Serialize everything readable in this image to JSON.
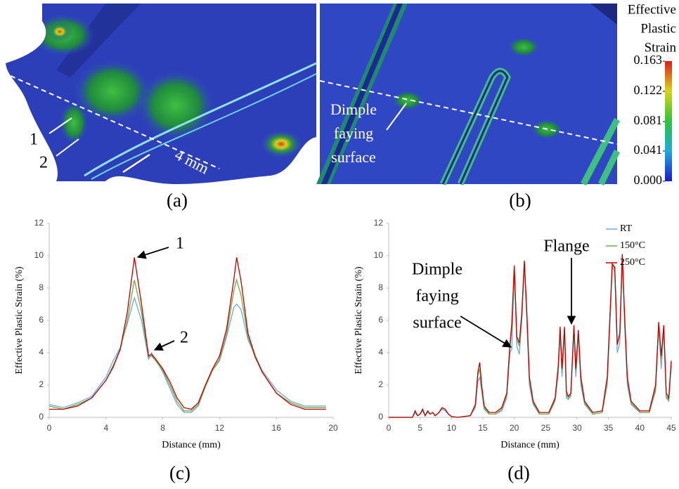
{
  "images": [
    {
      "panel_label": "(a)",
      "annotations": [
        "1",
        "2",
        "4 mm"
      ]
    },
    {
      "panel_label": "(b)",
      "annotations": [
        "Dimple",
        "faying",
        "surface"
      ]
    }
  ],
  "colorbar": {
    "title": [
      "Effective",
      "Plastic",
      "Strain"
    ],
    "lim": [
      0,
      0.163
    ],
    "ticks": [
      {
        "value": 0,
        "label": "0.000"
      },
      0.041,
      0.081,
      0.122,
      0.163
    ]
  },
  "chart_data": [
    {
      "type": "line",
      "panel_label": "(c)",
      "xlabel": "Distance (mm)",
      "ylabel": "Effective Plastic Strain (%)",
      "xlim": [
        0,
        20
      ],
      "xticks": [
        0,
        4,
        8,
        12,
        16,
        20
      ],
      "ylim": [
        0,
        12
      ],
      "yticks": [
        0,
        2,
        4,
        6,
        8,
        10,
        12
      ],
      "grid": false,
      "x": [
        0,
        1,
        2,
        3,
        4,
        4.5,
        5,
        5.5,
        6,
        6.5,
        7,
        7.2,
        7.5,
        8,
        8.5,
        9,
        9.5,
        10,
        10.5,
        11,
        11.5,
        12,
        12.5,
        13,
        13.2,
        13.5,
        14,
        14.5,
        15,
        16,
        17,
        18,
        19,
        19.5
      ],
      "series": [
        {
          "color": "#6fa8dc",
          "values": [
            0.8,
            0.6,
            0.9,
            1.3,
            2.5,
            3.5,
            4.3,
            5.8,
            7.4,
            6.0,
            3.6,
            4.0,
            3.6,
            2.8,
            1.8,
            0.8,
            0.3,
            0.3,
            0.7,
            1.9,
            2.9,
            3.5,
            5.0,
            6.8,
            7.0,
            6.7,
            4.8,
            3.8,
            2.9,
            1.7,
            1.0,
            0.7,
            0.7,
            0.7
          ]
        },
        {
          "color": "#70ad47",
          "values": [
            0.7,
            0.5,
            0.8,
            1.2,
            2.3,
            3.2,
            4.2,
            6.0,
            8.5,
            6.5,
            3.7,
            3.8,
            3.5,
            2.9,
            2.0,
            1.0,
            0.4,
            0.4,
            0.8,
            1.9,
            2.9,
            3.6,
            5.2,
            7.8,
            8.5,
            7.6,
            5.0,
            3.7,
            2.8,
            1.5,
            0.9,
            0.6,
            0.6,
            0.6
          ]
        },
        {
          "color": "#c00000",
          "values": [
            0.5,
            0.5,
            0.7,
            1.2,
            2.3,
            3.1,
            4.2,
            6.5,
            9.9,
            7.0,
            3.8,
            3.9,
            3.6,
            3.0,
            2.2,
            1.2,
            0.6,
            0.5,
            0.9,
            2.0,
            3.0,
            3.8,
            5.5,
            8.5,
            9.9,
            8.5,
            5.2,
            3.8,
            2.8,
            1.5,
            0.8,
            0.5,
            0.5,
            0.5
          ]
        }
      ],
      "annotations": [
        {
          "lines": [
            "1"
          ]
        },
        {
          "lines": [
            "2"
          ]
        }
      ]
    },
    {
      "type": "line",
      "panel_label": "(d)",
      "xlabel": "Distance (mm)",
      "ylabel": "Effective Plastic Strain (%)",
      "xlim": [
        0,
        45
      ],
      "xticks": [
        0,
        5,
        10,
        15,
        20,
        25,
        30,
        35,
        40,
        45
      ],
      "ylim": [
        0,
        12
      ],
      "yticks": [
        0,
        2,
        4,
        6,
        8,
        10,
        12
      ],
      "grid": false,
      "legend": "upper right",
      "x": [
        0,
        3.8,
        4.2,
        4.6,
        5,
        5.4,
        5.8,
        6.2,
        6.6,
        7,
        7.4,
        8,
        8.5,
        9,
        9.5,
        10,
        11,
        13,
        13.8,
        14.2,
        14.5,
        14.8,
        15.2,
        16,
        17,
        18,
        18.8,
        19.3,
        19.6,
        20,
        20.4,
        20.8,
        21.2,
        21.6,
        22,
        22.4,
        23,
        24,
        25.5,
        26.5,
        27,
        27.3,
        27.6,
        28,
        28.3,
        28.6,
        29,
        29.5,
        29.8,
        30.2,
        30.6,
        31.2,
        32.5,
        34,
        34.8,
        35.2,
        35.6,
        36,
        36.4,
        36.8,
        37.2,
        37.6,
        38,
        38.6,
        40,
        41.5,
        42.5,
        43,
        43.4,
        43.8,
        44.2,
        44.6,
        45
      ],
      "series": [
        {
          "name": "RT",
          "color": "#6fa8dc",
          "values": [
            0,
            0,
            0.3,
            0.1,
            0.2,
            0.4,
            0.1,
            0.3,
            0.2,
            0.3,
            0.1,
            0.3,
            0.5,
            0.4,
            0.2,
            0.05,
            0,
            0.1,
            0.6,
            2.2,
            2.5,
            1.6,
            0.5,
            0.2,
            0.2,
            0.4,
            1.2,
            4.0,
            4.2,
            9.2,
            4.4,
            3.9,
            6.0,
            9.5,
            6.0,
            2.0,
            0.8,
            0.2,
            0.2,
            1.0,
            2.7,
            5.3,
            2.5,
            5.4,
            1.2,
            1.1,
            1.3,
            5.4,
            2.5,
            5.2,
            2.0,
            0.8,
            0.2,
            0.3,
            2.0,
            5.5,
            9.3,
            9.0,
            4.0,
            4.6,
            9.9,
            5.5,
            2.0,
            0.8,
            0.3,
            0.3,
            1.6,
            5.6,
            3.0,
            5.5,
            1.2,
            1.0,
            3.2
          ]
        },
        {
          "name": "150°C",
          "color": "#70ad47",
          "values": [
            0,
            0,
            0.4,
            0.1,
            0.2,
            0.5,
            0.1,
            0.4,
            0.2,
            0.3,
            0.1,
            0.3,
            0.6,
            0.5,
            0.2,
            0.05,
            0,
            0.1,
            0.7,
            2.6,
            3.0,
            1.8,
            0.6,
            0.2,
            0.2,
            0.5,
            1.4,
            4.3,
            5.5,
            9.3,
            4.8,
            4.4,
            6.3,
            9.6,
            6.3,
            2.3,
            0.9,
            0.2,
            0.2,
            1.1,
            3.0,
            5.5,
            2.8,
            5.5,
            1.4,
            1.2,
            1.4,
            5.6,
            2.8,
            5.3,
            2.3,
            0.9,
            0.2,
            0.3,
            2.3,
            5.8,
            9.4,
            9.2,
            4.6,
            5.0,
            10.0,
            5.8,
            2.3,
            0.9,
            0.3,
            0.3,
            1.8,
            5.8,
            3.6,
            5.6,
            1.3,
            1.1,
            3.4
          ]
        },
        {
          "name": "250°C",
          "color": "#c00000",
          "values": [
            0,
            0,
            0.4,
            0.1,
            0.2,
            0.5,
            0.1,
            0.4,
            0.2,
            0.3,
            0.1,
            0.3,
            0.6,
            0.5,
            0.2,
            0.05,
            0,
            0.1,
            0.8,
            2.8,
            3.4,
            2.0,
            0.7,
            0.3,
            0.3,
            0.6,
            1.5,
            4.5,
            5.8,
            9.4,
            5.0,
            4.6,
            6.5,
            9.7,
            6.5,
            2.5,
            1.0,
            0.3,
            0.3,
            1.2,
            3.2,
            5.6,
            3.0,
            5.6,
            1.6,
            1.3,
            1.5,
            5.7,
            3.0,
            5.4,
            2.5,
            1.0,
            0.3,
            0.4,
            2.5,
            6.0,
            9.5,
            9.3,
            4.5,
            5.2,
            10.1,
            6.0,
            2.5,
            1.0,
            0.4,
            0.4,
            2.0,
            5.9,
            3.8,
            5.7,
            1.5,
            1.2,
            3.5
          ]
        }
      ],
      "annotations": [
        {
          "lines": [
            "Dimple",
            "faying",
            "surface"
          ]
        },
        {
          "lines": [
            "Flange"
          ]
        }
      ]
    }
  ]
}
